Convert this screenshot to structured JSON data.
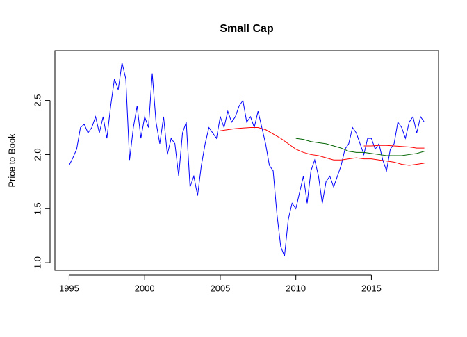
{
  "chart_data": {
    "type": "line",
    "title": "Small Cap",
    "y_label": "Price to Book",
    "xlim": [
      1994.06,
      2019.44
    ],
    "ylim": [
      0.93,
      2.96
    ],
    "xticks": [
      1995,
      2000,
      2005,
      2010,
      2015
    ],
    "yticks": [
      {
        "value": 1,
        "label": "1.0"
      },
      1.5,
      {
        "value": 2,
        "label": "2.0"
      },
      2.5
    ],
    "series": [
      {
        "color": "#0000ff",
        "x": [
          1995,
          1995.25,
          1995.5,
          1995.75,
          1996,
          1996.25,
          1996.5,
          1996.75,
          1997,
          1997.25,
          1997.5,
          1997.75,
          1998,
          1998.25,
          1998.5,
          1998.75,
          1999,
          1999.25,
          1999.5,
          1999.75,
          2000,
          2000.25,
          2000.5,
          2000.75,
          2001,
          2001.25,
          2001.5,
          2001.75,
          2002,
          2002.25,
          2002.5,
          2002.75,
          2003,
          2003.25,
          2003.5,
          2003.75,
          2004,
          2004.25,
          2004.5,
          2004.75,
          2005,
          2005.25,
          2005.5,
          2005.75,
          2006,
          2006.25,
          2006.5,
          2006.75,
          2007,
          2007.25,
          2007.5,
          2007.75,
          2008,
          2008.25,
          2008.5,
          2008.75,
          2009,
          2009.25,
          2009.5,
          2009.75,
          2010,
          2010.25,
          2010.5,
          2010.75,
          2011,
          2011.25,
          2011.5,
          2011.75,
          2012,
          2012.25,
          2012.5,
          2012.75,
          2013,
          2013.25,
          2013.5,
          2013.75,
          2014,
          2014.25,
          2014.5,
          2014.75,
          2015,
          2015.25,
          2015.5,
          2015.75,
          2016,
          2016.25,
          2016.5,
          2016.75,
          2017,
          2017.25,
          2017.5,
          2017.75,
          2018,
          2018.25,
          2018.5
        ],
        "values": [
          1.9,
          1.97,
          2.05,
          2.25,
          2.28,
          2.2,
          2.25,
          2.35,
          2.2,
          2.35,
          2.15,
          2.45,
          2.7,
          2.6,
          2.85,
          2.7,
          1.95,
          2.25,
          2.45,
          2.15,
          2.35,
          2.25,
          2.75,
          2.3,
          2.1,
          2.35,
          2.0,
          2.15,
          2.1,
          1.8,
          2.2,
          2.3,
          1.7,
          1.8,
          1.62,
          1.9,
          2.1,
          2.25,
          2.2,
          2.15,
          2.35,
          2.25,
          2.4,
          2.3,
          2.35,
          2.45,
          2.5,
          2.3,
          2.35,
          2.25,
          2.4,
          2.25,
          2.1,
          1.9,
          1.85,
          1.45,
          1.15,
          1.06,
          1.4,
          1.55,
          1.5,
          1.65,
          1.8,
          1.55,
          1.85,
          1.95,
          1.8,
          1.55,
          1.75,
          1.8,
          1.7,
          1.8,
          1.9,
          2.05,
          2.1,
          2.25,
          2.2,
          2.1,
          2.0,
          2.15,
          2.15,
          2.05,
          2.1,
          1.95,
          1.85,
          2.05,
          2.1,
          2.3,
          2.25,
          2.15,
          2.3,
          2.35,
          2.2,
          2.35,
          2.3
        ]
      },
      {
        "color": "#ff0000",
        "x": [
          2005,
          2005.5,
          2006,
          2006.5,
          2007,
          2007.5,
          2008,
          2008.5,
          2009,
          2009.5,
          2010,
          2010.5,
          2011,
          2011.5,
          2012,
          2012.5,
          2013,
          2013.5,
          2014,
          2014.5,
          2015,
          2015.5,
          2016,
          2016.5,
          2017,
          2017.5,
          2018,
          2018.5
        ],
        "values": [
          2.22,
          2.23,
          2.24,
          2.245,
          2.25,
          2.25,
          2.23,
          2.19,
          2.15,
          2.1,
          2.05,
          2.02,
          2.0,
          1.99,
          1.97,
          1.95,
          1.95,
          1.96,
          1.97,
          1.96,
          1.96,
          1.95,
          1.94,
          1.93,
          1.91,
          1.9,
          1.91,
          1.92
        ]
      },
      {
        "color": "#ff0000",
        "x": [
          2014.5,
          2015,
          2015.5,
          2016,
          2016.5,
          2017,
          2017.5,
          2018,
          2018.5
        ],
        "values": [
          2.08,
          2.08,
          2.085,
          2.085,
          2.08,
          2.075,
          2.07,
          2.06,
          2.06
        ]
      },
      {
        "color": "#006400",
        "x": [
          2010,
          2010.5,
          2011,
          2011.5,
          2012,
          2012.5,
          2013,
          2013.5,
          2014,
          2014.5,
          2015,
          2015.5,
          2016,
          2016.5,
          2017,
          2017.5,
          2018,
          2018.5
        ],
        "values": [
          2.15,
          2.14,
          2.12,
          2.11,
          2.1,
          2.08,
          2.06,
          2.03,
          2.02,
          2.02,
          2.01,
          2.0,
          1.99,
          1.99,
          1.99,
          2.0,
          2.01,
          2.03
        ]
      }
    ]
  }
}
